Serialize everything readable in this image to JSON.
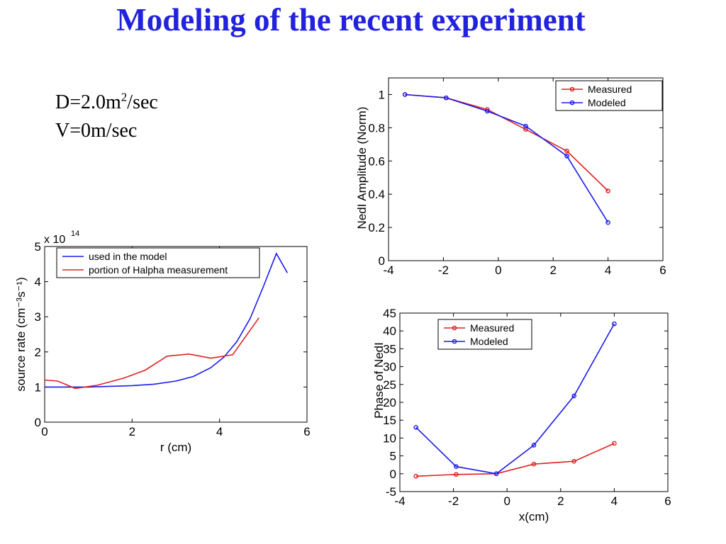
{
  "slide": {
    "title": "Modeling of the recent experiment",
    "param_d_prefix": "D=2.0m",
    "param_d_sup": "2",
    "param_d_suffix": "/sec",
    "param_v": "V=0m/sec"
  },
  "colors": {
    "title": "#2222dd",
    "red": "#e02020",
    "blue": "#1a1aee"
  },
  "chart_data": [
    {
      "id": "source",
      "type": "line",
      "xlabel": "r (cm)",
      "ylabel": "source rate (cm⁻³s⁻¹)",
      "multiplier_label": "x 10",
      "multiplier_exp": "14",
      "xlim": [
        0,
        6
      ],
      "ylim": [
        0,
        5
      ],
      "xticks": [
        0,
        2,
        4,
        6
      ],
      "yticks": [
        0,
        1,
        2,
        3,
        4,
        5
      ],
      "legend": "top-left",
      "series": [
        {
          "name": "used in the model",
          "color": "#1a1aee",
          "markers": false,
          "x": [
            0,
            0.5,
            1,
            1.5,
            2,
            2.5,
            3,
            3.4,
            3.8,
            4.1,
            4.4,
            4.7,
            5.0,
            5.3,
            5.55
          ],
          "y": [
            1.0,
            1.0,
            1.0,
            1.02,
            1.04,
            1.08,
            1.17,
            1.3,
            1.55,
            1.85,
            2.3,
            2.95,
            3.85,
            4.8,
            4.25
          ]
        },
        {
          "name": "portion of Halpha measurement",
          "color": "#e02020",
          "markers": false,
          "x": [
            0,
            0.3,
            0.7,
            1.2,
            1.8,
            2.3,
            2.8,
            3.3,
            3.8,
            4.3,
            4.9
          ],
          "y": [
            1.2,
            1.17,
            0.96,
            1.05,
            1.25,
            1.48,
            1.88,
            1.94,
            1.82,
            1.92,
            2.97
          ]
        }
      ]
    },
    {
      "id": "amplitude",
      "type": "line",
      "xlabel": "",
      "ylabel": "NedI Amplitude (Norm)",
      "xlim": [
        -4,
        6
      ],
      "ylim": [
        0,
        1.1
      ],
      "xticks": [
        -4,
        -2,
        0,
        2,
        4,
        6
      ],
      "yticks": [
        0,
        0.2,
        0.4,
        0.6,
        0.8,
        1
      ],
      "legend": "top-right",
      "series": [
        {
          "name": "Measured",
          "color": "#e02020",
          "markers": true,
          "x": [
            -3.4,
            -1.9,
            -0.4,
            1.0,
            2.5,
            4.0
          ],
          "y": [
            1.0,
            0.98,
            0.91,
            0.79,
            0.66,
            0.42
          ]
        },
        {
          "name": "Modeled",
          "color": "#1a1aee",
          "markers": true,
          "x": [
            -3.4,
            -1.9,
            -0.4,
            1.0,
            2.5,
            4.0
          ],
          "y": [
            1.0,
            0.98,
            0.9,
            0.81,
            0.63,
            0.23
          ]
        }
      ]
    },
    {
      "id": "phase",
      "type": "line",
      "xlabel": "x(cm)",
      "ylabel": "Phase of NedI",
      "xlim": [
        -4,
        6
      ],
      "ylim": [
        -5,
        45
      ],
      "xticks": [
        -4,
        -2,
        0,
        2,
        4,
        6
      ],
      "yticks": [
        -5,
        0,
        5,
        10,
        15,
        20,
        25,
        30,
        35,
        40,
        45
      ],
      "legend": "top-left",
      "series": [
        {
          "name": "Measured",
          "color": "#e02020",
          "markers": true,
          "x": [
            -3.4,
            -1.9,
            -0.4,
            1.0,
            2.5,
            4.0
          ],
          "y": [
            -0.7,
            -0.2,
            0.0,
            2.7,
            3.5,
            8.5
          ]
        },
        {
          "name": "Modeled",
          "color": "#1a1aee",
          "markers": true,
          "x": [
            -3.4,
            -1.9,
            -0.4,
            1.0,
            2.5,
            4.0
          ],
          "y": [
            13.0,
            2.0,
            0.0,
            8.0,
            21.8,
            42.0
          ]
        }
      ]
    }
  ]
}
